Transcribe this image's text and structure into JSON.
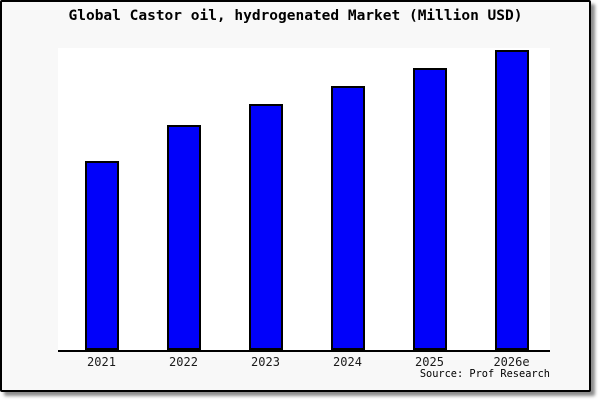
{
  "panel": {
    "background": "#f8f8f8",
    "border_color": "#000000",
    "shadow": "dark grey drop shadow bottom-right"
  },
  "chart_data": {
    "type": "bar",
    "title": "Global Castor oil, hydrogenated Market (Million USD)",
    "categories": [
      "2021",
      "2022",
      "2023",
      "2024",
      "2025",
      "2026e"
    ],
    "values_relative": [
      63,
      75,
      82,
      88,
      94,
      100
    ],
    "value_note": "no y-axis scale or data labels shown; values are bar heights relative to 2026e = 100",
    "xlabel": "",
    "ylabel": "",
    "y_axis_ticks": "none",
    "gridlines": false,
    "legend": "none",
    "plot_bg": "#ffffff",
    "bar_color": "#0101fa",
    "bar_border_color": "#000000",
    "axis_line_color": "#000000",
    "source": "Source: Prof Research"
  }
}
